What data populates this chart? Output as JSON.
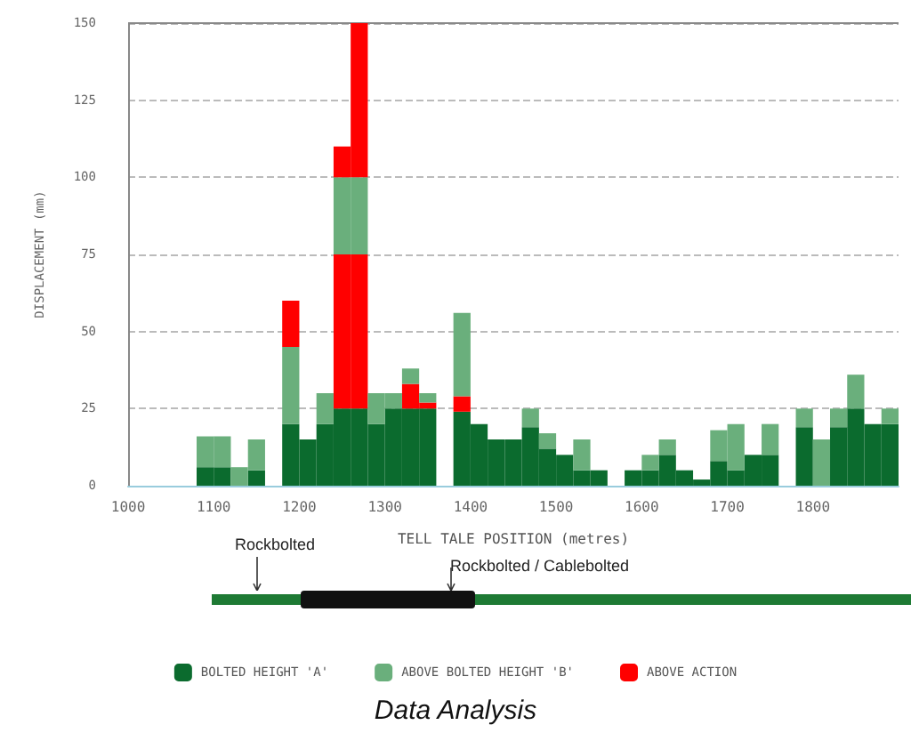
{
  "chart_data": {
    "type": "bar",
    "title": "Data Analysis",
    "xlabel": "TELL TALE POSITION (metres)",
    "ylabel": "DISPLACEMENT (mm)",
    "stacked": true,
    "x": [
      1090,
      1110,
      1130,
      1150,
      1190,
      1210,
      1230,
      1250,
      1270,
      1290,
      1310,
      1330,
      1350,
      1390,
      1410,
      1430,
      1450,
      1470,
      1490,
      1510,
      1530,
      1550,
      1590,
      1610,
      1630,
      1650,
      1670,
      1690,
      1710,
      1730,
      1750,
      1790,
      1810,
      1830,
      1850,
      1870,
      1890
    ],
    "series": [
      {
        "name": "BOLTED HEIGHT 'A'",
        "color": "#0b6b2e",
        "values": [
          6,
          6,
          null,
          5,
          20,
          15,
          20,
          25,
          25,
          20,
          25,
          25,
          25,
          24,
          20,
          15,
          15,
          19,
          12,
          10,
          5,
          5,
          5,
          5,
          10,
          5,
          2,
          8,
          5,
          10,
          10,
          19,
          null,
          19,
          25,
          20,
          20
        ]
      },
      {
        "color": "#ff0000",
        "values": [
          null,
          null,
          null,
          null,
          null,
          null,
          null,
          50,
          50,
          null,
          null,
          8,
          2,
          5,
          null,
          null,
          null,
          null,
          null,
          null,
          null,
          null,
          null,
          null,
          null,
          null,
          null,
          null,
          null,
          null,
          null,
          null,
          null,
          null,
          null,
          null,
          null
        ]
      },
      {
        "name": "ABOVE BOLTED HEIGHT 'B'",
        "color": "#6aaf7c",
        "values": [
          10,
          10,
          6,
          10,
          25,
          null,
          10,
          25,
          25,
          10,
          5,
          5,
          3,
          27,
          null,
          null,
          null,
          6,
          5,
          null,
          10,
          null,
          null,
          5,
          5,
          null,
          null,
          10,
          15,
          null,
          10,
          6,
          15,
          6,
          11,
          null,
          5
        ]
      },
      {
        "name": "ABOVE ACTION",
        "color": "#ff0000",
        "values": [
          null,
          null,
          null,
          null,
          15,
          null,
          null,
          10,
          50,
          null,
          null,
          null,
          null,
          null,
          null,
          null,
          null,
          null,
          null,
          null,
          null,
          null,
          null,
          null,
          null,
          null,
          null,
          null,
          null,
          null,
          null,
          null,
          null,
          null,
          null,
          null,
          null
        ]
      }
    ],
    "xlim": [
      1000,
      1900
    ],
    "xticks": [
      1000,
      1100,
      1200,
      1300,
      1400,
      1500,
      1600,
      1700,
      1800
    ],
    "ylim": [
      0,
      150
    ],
    "yticks": [
      0,
      25,
      50,
      75,
      100,
      125,
      150
    ],
    "grid": "y",
    "legend": "bottom",
    "annotations": [
      "Rockbolted",
      "Rockbolted / Cablebolted"
    ]
  }
}
